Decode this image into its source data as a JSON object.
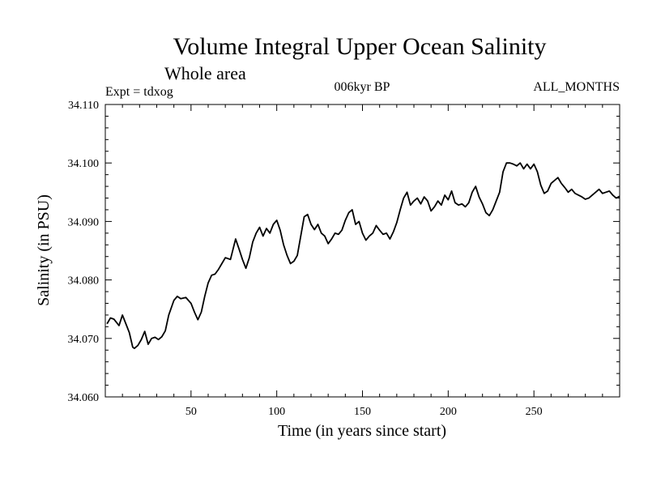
{
  "chart_data": {
    "type": "line",
    "title": "Volume Integral Upper Ocean Salinity",
    "subtitle": "Whole area",
    "header_left": "Expt = tdxog",
    "header_center": "006kyr BP",
    "header_right": "ALL_MONTHS",
    "xlabel": "Time (in years since start)",
    "ylabel": "Salinity (in PSU)",
    "xlim": [
      0,
      300
    ],
    "ylim": [
      34.06,
      34.11
    ],
    "x_ticks": [
      50,
      100,
      150,
      200,
      250
    ],
    "y_ticks": [
      "34.060",
      "34.070",
      "34.080",
      "34.090",
      "34.100",
      "34.110"
    ],
    "grid": false,
    "series": [
      {
        "color": "#000000",
        "x": [
          1,
          3,
          5,
          8,
          10,
          12,
          14,
          16,
          17,
          19,
          21,
          23,
          25,
          27,
          29,
          31,
          33,
          35,
          37,
          40,
          42,
          44,
          47,
          50,
          52,
          54,
          56,
          58,
          60,
          62,
          64,
          66,
          68,
          70,
          73,
          76,
          78,
          80,
          82,
          84,
          86,
          88,
          90,
          92,
          94,
          96,
          98,
          100,
          102,
          104,
          106,
          108,
          110,
          112,
          114,
          116,
          118,
          120,
          122,
          124,
          126,
          128,
          130,
          132,
          134,
          136,
          138,
          140,
          142,
          144,
          146,
          148,
          150,
          152,
          154,
          156,
          158,
          160,
          162,
          164,
          166,
          168,
          170,
          172,
          174,
          176,
          178,
          180,
          182,
          184,
          186,
          188,
          190,
          192,
          194,
          196,
          198,
          200,
          202,
          204,
          206,
          208,
          210,
          212,
          214,
          216,
          218,
          220,
          222,
          224,
          226,
          228,
          230,
          232,
          234,
          236,
          238,
          240,
          242,
          244,
          246,
          248,
          250,
          252,
          254,
          256,
          258,
          260,
          262,
          264,
          266,
          268,
          270,
          272,
          274,
          276,
          278,
          280,
          282,
          284,
          286,
          288,
          290,
          292,
          294,
          296,
          298,
          300
        ],
        "y": [
          34.0725,
          34.0735,
          34.0733,
          34.0722,
          34.074,
          34.0725,
          34.071,
          34.0685,
          34.0683,
          34.0688,
          34.0698,
          34.0712,
          34.069,
          34.07,
          34.0702,
          34.0698,
          34.0703,
          34.0713,
          34.074,
          34.0765,
          34.0772,
          34.0768,
          34.077,
          34.076,
          34.0745,
          34.0732,
          34.0745,
          34.0772,
          34.0795,
          34.0808,
          34.081,
          34.0818,
          34.0828,
          34.0838,
          34.0835,
          34.087,
          34.0853,
          34.0835,
          34.082,
          34.0838,
          34.0865,
          34.088,
          34.089,
          34.0875,
          34.0888,
          34.088,
          34.0895,
          34.0902,
          34.0885,
          34.086,
          34.0842,
          34.0828,
          34.0832,
          34.0842,
          34.0875,
          34.0908,
          34.0912,
          34.0895,
          34.0886,
          34.0895,
          34.088,
          34.0875,
          34.0862,
          34.087,
          34.088,
          34.0878,
          34.0885,
          34.0902,
          34.0915,
          34.092,
          34.0895,
          34.09,
          34.088,
          34.0868,
          34.0875,
          34.088,
          34.0893,
          34.0885,
          34.0878,
          34.088,
          34.087,
          34.0882,
          34.0898,
          34.092,
          34.094,
          34.095,
          34.0928,
          34.0935,
          34.094,
          34.093,
          34.0942,
          34.0935,
          34.0918,
          34.0925,
          34.0935,
          34.0928,
          34.0945,
          34.0937,
          34.0952,
          34.0932,
          34.0928,
          34.093,
          34.0925,
          34.0932,
          34.095,
          34.096,
          34.0942,
          34.093,
          34.0915,
          34.091,
          34.092,
          34.0935,
          34.095,
          34.0985,
          34.1,
          34.1,
          34.0998,
          34.0995,
          34.1,
          34.099,
          34.0998,
          34.099,
          34.0998,
          34.0985,
          34.0962,
          34.0948,
          34.0952,
          34.0965,
          34.097,
          34.0975,
          34.0965,
          34.0958,
          34.095,
          34.0955,
          34.0948,
          34.0945,
          34.0942,
          34.0938,
          34.094,
          34.0945,
          34.095,
          34.0955,
          34.0948,
          34.095,
          34.0952,
          34.0945,
          34.094,
          34.0943
        ]
      }
    ]
  }
}
